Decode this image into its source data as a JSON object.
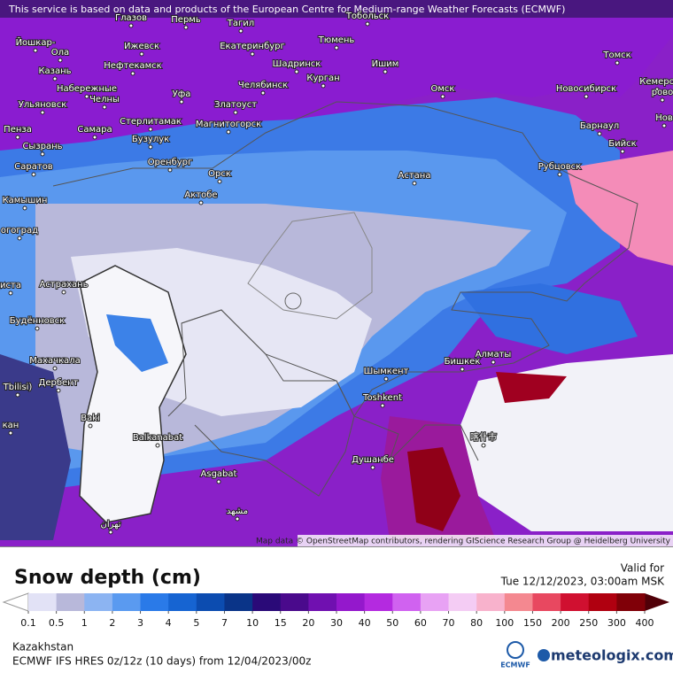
{
  "header": {
    "notice": "This service is based on data and products of the European Centre for Medium-range Weather Forecasts (ECMWF)"
  },
  "map": {
    "cities": [
      "Глазов",
      "Пермь",
      "Тагил",
      "Тобольск",
      "Йошкар-",
      "Ола",
      "Ижевск",
      "Екатеринбург",
      "Тюмень",
      "Томск",
      "Кемеро",
      "рово",
      "Нефтекамск",
      "Шадринск",
      "Ишим",
      "Казань",
      "Курган",
      "Омск",
      "Новосибирск",
      "Набережные",
      "Челны",
      "Уфа",
      "Челябинск",
      "Ульяновск",
      "Златоуст",
      "Нов",
      "Барнаул",
      "Стерлитамак",
      "Магнитогорск",
      "Пенза",
      "Самара",
      "Бийск",
      "Бузулук",
      "Сызрань",
      "Оренбург",
      "Рубцовск",
      "Саратов",
      "Орск",
      "Астана",
      "Актобе",
      "Камышин",
      "огоград",
      "иста",
      "Астрахань",
      "Будённовск",
      "Махачкала",
      "Шымкент",
      "Бишкек",
      "Алматы",
      "Tbilisi)",
      "Дербент",
      "Toshkent",
      "Baki",
      "Balkanabat",
      "喀什市",
      "Душанбе",
      "Asgabat",
      "مشهد",
      "تهران",
      "кан"
    ],
    "attribution": "Map data © OpenStreetMap contributors, rendering GIScience Research Group @ Heidelberg University"
  },
  "legend": {
    "title": "Snow depth (cm)",
    "valid_label": "Valid for",
    "valid_time": "Tue 12/12/2023, 03:00am MSK",
    "ticks": [
      0.1,
      0.5,
      1,
      2,
      3,
      4,
      5,
      7,
      10,
      15,
      20,
      30,
      40,
      50,
      60,
      70,
      80,
      100,
      150,
      200,
      250,
      300,
      400
    ],
    "colors": [
      "#e2e2f6",
      "#b8b8da",
      "#8cb4f2",
      "#5a9af0",
      "#2a7ae8",
      "#1664d2",
      "#0c4cb0",
      "#0a3488",
      "#2a0a78",
      "#4a0a8c",
      "#7010b0",
      "#9418cc",
      "#b42ae0",
      "#d062f0",
      "#e8a2f4",
      "#f4ccf4",
      "#f8b2cc",
      "#f48890",
      "#e84860",
      "#d01030",
      "#b00010",
      "#800008"
    ],
    "under_color": "#ffffff",
    "over_color": "#500008"
  },
  "footer": {
    "region": "Kazakhstan",
    "model": "ECMWF IFS HRES 0z/12z (10 days) from 12/04/2023/00z",
    "ecmwf_logo": "ECMWF",
    "brand": "meteologix.com"
  }
}
